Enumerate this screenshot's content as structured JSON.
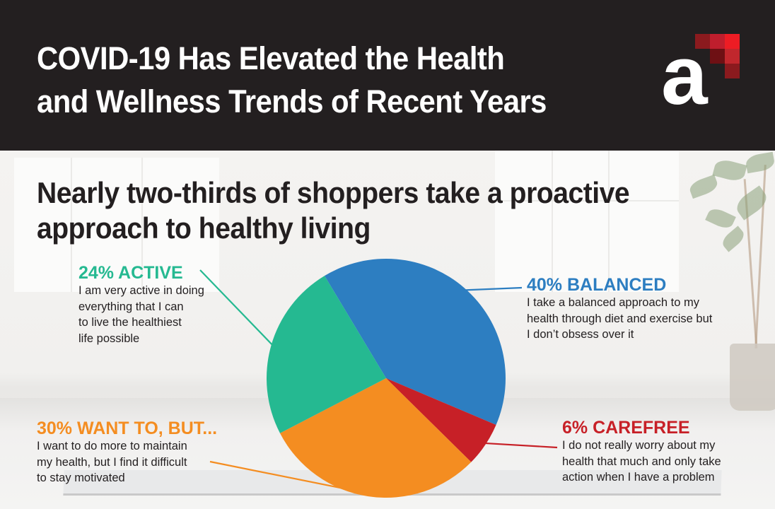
{
  "header": {
    "title_lines": [
      "COVID-19 Has Elevated the Health",
      "and Wellness Trends of Recent Years"
    ],
    "logo_text": "a",
    "logo_icon": "pixel-squares-icon",
    "background": "#231f20"
  },
  "subtitle_lines": [
    "Nearly two-thirds of shoppers take a proactive",
    "approach to healthy living"
  ],
  "chart_data": {
    "type": "pie",
    "title": "Nearly two-thirds of shoppers take a proactive approach to healthy living",
    "start_angle_deg": -31,
    "direction": "clockwise",
    "slices": [
      {
        "name": "BALANCED",
        "value": 40,
        "label": "40% BALANCED",
        "description": [
          "I take a balanced approach to my",
          "health through diet and exercise but",
          "I don’t obsess over it"
        ],
        "color": "#2d7ec1"
      },
      {
        "name": "CAREFREE",
        "value": 6,
        "label": "6% CAREFREE",
        "description": [
          "I do not really worry about my",
          "health that much and only take",
          "action when I have a problem"
        ],
        "color": "#c72027"
      },
      {
        "name": "WANT TO, BUT...",
        "value": 30,
        "label": "30% WANT TO, BUT...",
        "description": [
          "I want to do more to maintain",
          "my health, but I find it difficult",
          "to stay motivated"
        ],
        "color": "#f48d21"
      },
      {
        "name": "ACTIVE",
        "value": 24,
        "label": "24% ACTIVE",
        "description": [
          "I am very active in doing",
          "everything that I can",
          "to live the healthiest",
          "life possible"
        ],
        "color": "#25b991"
      }
    ]
  }
}
